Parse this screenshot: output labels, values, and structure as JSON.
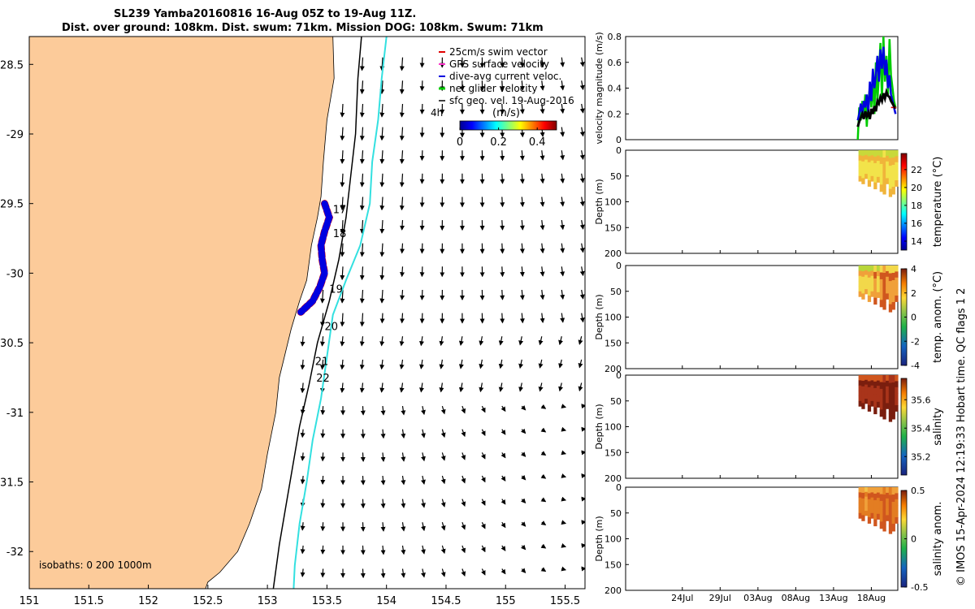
{
  "title_line1": "SL239 Yamba20160816 16-Aug 05Z to 19-Aug 11Z.",
  "title_line2": "Dist. over ground: 108km. Dist. swum: 71km. Mission DOG: 108km. Swum: 71km",
  "credit": "© IMOS 15-Apr-2024 12:19:33 Hobart time. QC flags 1  2",
  "colors": {
    "land": "#FCCB9A",
    "isobath_200": "#000000",
    "isobath_1000": "#33E0E0",
    "track_gps": "#E00000",
    "track_dive": "#0000E0",
    "net_glider": "#00CC00"
  },
  "chart_data": [
    {
      "type": "scatter",
      "name": "map",
      "xlim": [
        151,
        155.667
      ],
      "ylim": [
        -32.267,
        -28.3
      ],
      "x_ticks": [
        151,
        151.5,
        152,
        152.5,
        153,
        153.5,
        154,
        154.5,
        155,
        155.5
      ],
      "x_tick_labels": [
        "151",
        "151.5",
        "152",
        "152.5",
        "153",
        "153.5",
        "154",
        "154.5",
        "155",
        "155.5"
      ],
      "y_ticks": [
        -28.5,
        -29,
        -29.5,
        -30,
        -30.5,
        -31,
        -31.5,
        -32
      ],
      "y_tick_labels": [
        "-28.5",
        "-29",
        "-29.5",
        "-30",
        "-30.5",
        "-31",
        "-31.5",
        "-32"
      ],
      "legend": {
        "placement": "top-right",
        "entries": [
          "25cm/s swim vector",
          "GPS surface velocity",
          "dive-avg current veloc.",
          "net glider velocity",
          "sfc geo. vel. 19-Aug-2016"
        ]
      },
      "colorbar": {
        "label": "(m/s)",
        "ticks": [
          0,
          0.2,
          0.4
        ],
        "tick_labels": [
          "0",
          "0.2",
          "0.4"
        ],
        "range": [
          0,
          0.5
        ]
      },
      "scale_label": "4h",
      "isobaths_label": "isobaths: 0   200  1000m",
      "coastline": [
        [
          153.55,
          -28.3
        ],
        [
          153.56,
          -28.6
        ],
        [
          153.5,
          -28.9
        ],
        [
          153.47,
          -29.2
        ],
        [
          153.45,
          -29.45
        ],
        [
          153.42,
          -29.6
        ],
        [
          153.37,
          -29.8
        ],
        [
          153.33,
          -30.05
        ],
        [
          153.27,
          -30.2
        ],
        [
          153.2,
          -30.4
        ],
        [
          153.1,
          -30.75
        ],
        [
          153.07,
          -31.0
        ],
        [
          153.0,
          -31.3
        ],
        [
          152.95,
          -31.55
        ],
        [
          152.85,
          -31.8
        ],
        [
          152.75,
          -32.0
        ],
        [
          152.6,
          -32.15
        ],
        [
          152.5,
          -32.22
        ],
        [
          152.48,
          -32.267
        ]
      ],
      "isobath_200": [
        [
          153.79,
          -28.3
        ],
        [
          153.76,
          -28.6
        ],
        [
          153.74,
          -29.0
        ],
        [
          153.7,
          -29.3
        ],
        [
          153.66,
          -29.6
        ],
        [
          153.6,
          -29.9
        ],
        [
          153.52,
          -30.2
        ],
        [
          153.42,
          -30.5
        ],
        [
          153.35,
          -30.8
        ],
        [
          153.27,
          -31.1
        ],
        [
          153.21,
          -31.4
        ],
        [
          153.15,
          -31.7
        ],
        [
          153.1,
          -31.95
        ],
        [
          153.05,
          -32.267
        ]
      ],
      "isobath_1000": [
        [
          154.0,
          -28.3
        ],
        [
          153.96,
          -28.6
        ],
        [
          153.93,
          -28.9
        ],
        [
          153.88,
          -29.2
        ],
        [
          153.86,
          -29.5
        ],
        [
          153.78,
          -29.8
        ],
        [
          153.66,
          -30.05
        ],
        [
          153.55,
          -30.3
        ],
        [
          153.5,
          -30.6
        ],
        [
          153.45,
          -30.9
        ],
        [
          153.38,
          -31.2
        ],
        [
          153.33,
          -31.5
        ],
        [
          153.27,
          -31.8
        ],
        [
          153.23,
          -32.1
        ],
        [
          153.22,
          -32.267
        ]
      ],
      "track": [
        [
          153.48,
          -29.5
        ],
        [
          153.52,
          -29.6
        ],
        [
          153.48,
          -29.7
        ],
        [
          153.45,
          -29.8
        ],
        [
          153.46,
          -29.9
        ],
        [
          153.48,
          -30.0
        ],
        [
          153.44,
          -30.1
        ],
        [
          153.38,
          -30.2
        ],
        [
          153.28,
          -30.28
        ]
      ],
      "track_labels": [
        {
          "text": "17",
          "lon": 153.55,
          "lat": -29.57
        },
        {
          "text": "18",
          "lon": 153.55,
          "lat": -29.74
        },
        {
          "text": "19",
          "lon": 153.52,
          "lat": -30.14
        },
        {
          "text": "20",
          "lon": 153.48,
          "lat": -30.41
        },
        {
          "text": "21",
          "lon": 153.4,
          "lat": -30.66
        },
        {
          "text": "22",
          "lon": 153.41,
          "lat": -30.78
        }
      ]
    },
    {
      "type": "line",
      "name": "velocity",
      "ylabel": "velocity magnitude (m/s)",
      "ylim": [
        0,
        0.8
      ],
      "y_ticks": [
        0,
        0.2,
        0.4,
        0.6,
        0.8
      ],
      "y_tick_labels": [
        "0",
        "0.2",
        "0.4",
        "0.6",
        "0.8"
      ],
      "xlim_days": [
        -32.5,
        3.5
      ],
      "x": [
        -1.8,
        -1.6,
        -1.4,
        -1.2,
        -1.0,
        -0.8,
        -0.6,
        -0.4,
        -0.2,
        0.0,
        0.2,
        0.4,
        0.6,
        0.8,
        1.0,
        1.2,
        1.4,
        1.6,
        1.8,
        2.0,
        2.2,
        2.4,
        2.6,
        2.8,
        3.0,
        3.2
      ],
      "series": [
        {
          "name": "net glider velocity",
          "color": "#00CC00",
          "values": [
            0.0,
            0.25,
            0.15,
            0.3,
            0.2,
            0.35,
            0.1,
            0.3,
            0.4,
            0.25,
            0.45,
            0.2,
            0.6,
            0.3,
            0.5,
            0.75,
            0.3,
            0.8,
            0.45,
            0.65,
            0.35,
            0.78,
            0.5,
            0.4,
            0.3,
            0.25
          ]
        },
        {
          "name": "dive-avg current veloc.",
          "color": "#0000E0",
          "values": [
            0.15,
            0.2,
            0.28,
            0.2,
            0.3,
            0.25,
            0.35,
            0.2,
            0.45,
            0.3,
            0.55,
            0.4,
            0.5,
            0.65,
            0.45,
            0.7,
            0.55,
            0.72,
            0.5,
            0.62,
            0.4,
            0.5,
            0.35,
            0.3,
            0.25,
            0.2
          ]
        },
        {
          "name": "sfc geo. vel.",
          "color": "#000000",
          "values": [
            0.1,
            0.14,
            0.17,
            0.2,
            0.16,
            0.22,
            0.18,
            0.21,
            0.16,
            0.24,
            0.2,
            0.26,
            0.22,
            0.3,
            0.28,
            0.33,
            0.3,
            0.36,
            0.32,
            0.37,
            0.34,
            0.33,
            0.3,
            0.28,
            0.26,
            0.24
          ]
        }
      ]
    },
    {
      "type": "heatmap",
      "name": "temperature",
      "ylabel": "Depth (m)",
      "ylim": [
        0,
        200
      ],
      "y_ticks": [
        0,
        50,
        100,
        150,
        200
      ],
      "y_tick_labels": [
        "0",
        "50",
        "100",
        "150",
        "200"
      ],
      "colorbar": {
        "label": "temperature (°C)",
        "range": [
          13,
          23.8
        ],
        "ticks": [
          14,
          16,
          18,
          20,
          22
        ],
        "tick_labels": [
          "14",
          "16",
          "18",
          "20",
          "22"
        ]
      },
      "x": [
        -1.7,
        -1.3,
        -0.9,
        -0.5,
        -0.1,
        0.3,
        0.7,
        1.1,
        1.5,
        1.9,
        2.3,
        2.7,
        3.1
      ],
      "depth_max": [
        60,
        65,
        55,
        70,
        60,
        75,
        62,
        80,
        85,
        65,
        90,
        85,
        70
      ],
      "values": [
        22,
        22.5,
        21.5,
        22,
        21.8,
        22.6,
        21.5,
        22.3,
        22.8,
        21.9,
        22.5,
        22.7,
        22.2
      ]
    },
    {
      "type": "heatmap",
      "name": "temp_anom",
      "ylabel": "Depth (m)",
      "ylim": [
        0,
        200
      ],
      "y_ticks": [
        0,
        50,
        100,
        150,
        200
      ],
      "y_tick_labels": [
        "0",
        "50",
        "100",
        "150",
        "200"
      ],
      "colorbar": {
        "label": "temp. anom. (°C)",
        "range": [
          -4,
          4
        ],
        "ticks": [
          -4,
          -2,
          0,
          2,
          4
        ],
        "tick_labels": [
          "-4",
          "-2",
          "0",
          "2",
          "4"
        ]
      },
      "x": [
        -1.7,
        -1.3,
        -0.9,
        -0.5,
        -0.1,
        0.3,
        0.7,
        1.1,
        1.5,
        1.9,
        2.3,
        2.7,
        3.1
      ],
      "depth_max": [
        60,
        65,
        55,
        70,
        60,
        75,
        62,
        80,
        85,
        65,
        90,
        85,
        70
      ],
      "values": [
        0.5,
        1.2,
        0.2,
        1.5,
        0.8,
        2.2,
        1.0,
        2.5,
        3.2,
        1.6,
        3.0,
        2.6,
        2.0
      ]
    },
    {
      "type": "heatmap",
      "name": "salinity",
      "ylabel": "Depth (m)",
      "ylim": [
        0,
        200
      ],
      "y_ticks": [
        0,
        50,
        100,
        150,
        200
      ],
      "y_tick_labels": [
        "0",
        "50",
        "100",
        "150",
        "200"
      ],
      "colorbar": {
        "label": "salinity",
        "range": [
          35.07,
          35.75
        ],
        "ticks": [
          35.2,
          35.4,
          35.6
        ],
        "tick_labels": [
          "35.2",
          "35.4",
          "35.6"
        ]
      },
      "x": [
        -1.7,
        -1.3,
        -0.9,
        -0.5,
        -0.1,
        0.3,
        0.7,
        1.1,
        1.5,
        1.9,
        2.3,
        2.7,
        3.1
      ],
      "depth_max": [
        60,
        65,
        55,
        70,
        60,
        75,
        62,
        80,
        85,
        65,
        90,
        85,
        70
      ],
      "values": [
        35.6,
        35.62,
        35.58,
        35.63,
        35.6,
        35.66,
        35.6,
        35.67,
        35.7,
        35.62,
        35.72,
        35.69,
        35.64
      ]
    },
    {
      "type": "heatmap",
      "name": "salinity_anom",
      "ylabel": "Depth (m)",
      "ylim": [
        0,
        200
      ],
      "y_ticks": [
        0,
        50,
        100,
        150,
        200
      ],
      "y_tick_labels": [
        "0",
        "50",
        "100",
        "150",
        "200"
      ],
      "colorbar": {
        "label": "salinity anom.",
        "range": [
          -0.5,
          0.5
        ],
        "ticks": [
          -0.5,
          0,
          0.5
        ],
        "tick_labels": [
          "-0.5",
          "0",
          "0.5"
        ]
      },
      "x": [
        -1.7,
        -1.3,
        -0.9,
        -0.5,
        -0.1,
        0.3,
        0.7,
        1.1,
        1.5,
        1.9,
        2.3,
        2.7,
        3.1
      ],
      "depth_max": [
        60,
        65,
        55,
        70,
        60,
        75,
        62,
        80,
        85,
        65,
        90,
        85,
        70
      ],
      "values": [
        0.25,
        0.32,
        0.18,
        0.3,
        0.22,
        0.35,
        0.2,
        0.38,
        0.42,
        0.28,
        0.4,
        0.36,
        0.3
      ],
      "x_ticks_days": [
        -25,
        -20,
        -15,
        -10,
        -5,
        0
      ],
      "x_tick_labels": [
        "24Jul",
        "29Jul",
        "03Aug",
        "08Aug",
        "13Aug",
        "18Aug"
      ]
    }
  ]
}
